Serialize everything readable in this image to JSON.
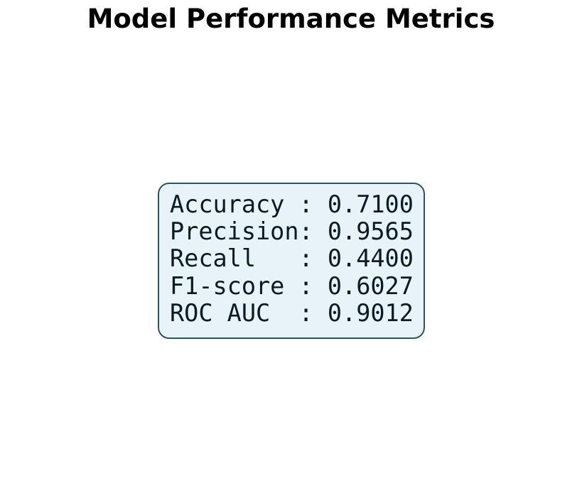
{
  "chart_data": {
    "type": "table",
    "title": "Model Performance Metrics",
    "colors": {
      "box_fill": "#e8f3f9",
      "box_border": "#2b5468",
      "text": "#0b1a24"
    },
    "rows": [
      {
        "line": "Accuracy : 0.7100",
        "metric": "Accuracy",
        "value": 0.71
      },
      {
        "line": "Precision: 0.9565",
        "metric": "Precision",
        "value": 0.9565
      },
      {
        "line": "Recall   : 0.4400",
        "metric": "Recall",
        "value": 0.44
      },
      {
        "line": "F1-score : 0.6027",
        "metric": "F1-score",
        "value": 0.6027
      },
      {
        "line": "ROC AUC  : 0.9012",
        "metric": "ROC AUC",
        "value": 0.9012
      }
    ]
  }
}
